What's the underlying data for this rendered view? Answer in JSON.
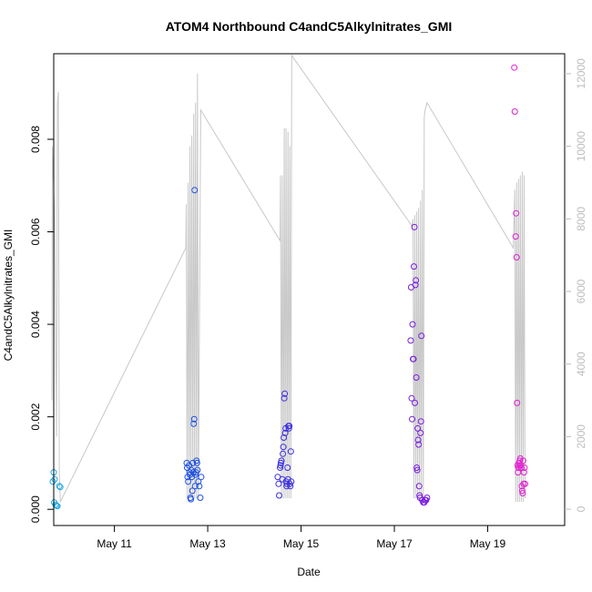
{
  "chart_data": {
    "type": "scatter",
    "title": "ATOM4 Northbound C4andC5Alkylnitrates_GMI",
    "xlabel": "Date",
    "ylabel": "C4andC5Alkylnitrates_GMI",
    "xlim": [
      9.7,
      20.65
    ],
    "ylim": [
      -0.00035,
      0.00985
    ],
    "y2lim": [
      -450,
      12550
    ],
    "x_ticks": [
      {
        "value": 11,
        "label": "May 11"
      },
      {
        "value": 13,
        "label": "May 13"
      },
      {
        "value": 15,
        "label": "May 15"
      },
      {
        "value": 17,
        "label": "May 17"
      },
      {
        "value": 19,
        "label": "May 19"
      }
    ],
    "y_ticks": [
      {
        "value": 0,
        "label": "0.000"
      },
      {
        "value": 0.002,
        "label": "0.002"
      },
      {
        "value": 0.004,
        "label": "0.004"
      },
      {
        "value": 0.006,
        "label": "0.006"
      },
      {
        "value": 0.008,
        "label": "0.008"
      }
    ],
    "y2_ticks": [
      {
        "value": 0,
        "label": "0"
      },
      {
        "value": 2000,
        "label": "2000"
      },
      {
        "value": 4000,
        "label": "4000"
      },
      {
        "value": 6000,
        "label": "6000"
      },
      {
        "value": 8000,
        "label": "8000"
      },
      {
        "value": 10000,
        "label": "10000"
      },
      {
        "value": 12000,
        "label": "12000"
      }
    ],
    "grid": false,
    "marker": "open-circle",
    "altitude_color": "#c8c8c8",
    "altitude_trace": [
      [
        9.66,
        3000
      ],
      [
        9.67,
        10000
      ],
      [
        9.72,
        8000
      ],
      [
        9.76,
        2000
      ],
      [
        9.78,
        11200
      ],
      [
        9.8,
        11500
      ],
      [
        9.82,
        1000
      ],
      [
        9.84,
        200
      ],
      [
        12.53,
        7200
      ],
      [
        12.54,
        8400
      ],
      [
        12.56,
        300
      ],
      [
        12.58,
        9000
      ],
      [
        12.6,
        300
      ],
      [
        12.62,
        10000
      ],
      [
        12.64,
        300
      ],
      [
        12.66,
        10300
      ],
      [
        12.68,
        300
      ],
      [
        12.7,
        10900
      ],
      [
        12.72,
        300
      ],
      [
        12.74,
        11200
      ],
      [
        12.76,
        300
      ],
      [
        12.78,
        12000
      ],
      [
        12.8,
        300
      ],
      [
        12.85,
        11000
      ],
      [
        14.55,
        7400
      ],
      [
        14.56,
        9200
      ],
      [
        14.58,
        300
      ],
      [
        14.6,
        9200
      ],
      [
        14.62,
        300
      ],
      [
        14.64,
        10500
      ],
      [
        14.66,
        300
      ],
      [
        14.68,
        10500
      ],
      [
        14.7,
        300
      ],
      [
        14.72,
        10400
      ],
      [
        14.74,
        300
      ],
      [
        14.76,
        10000
      ],
      [
        14.78,
        300
      ],
      [
        14.8,
        12500
      ],
      [
        17.38,
        7800
      ],
      [
        17.4,
        8000
      ],
      [
        17.42,
        300
      ],
      [
        17.44,
        8100
      ],
      [
        17.46,
        300
      ],
      [
        17.48,
        8200
      ],
      [
        17.5,
        300
      ],
      [
        17.52,
        8300
      ],
      [
        17.54,
        300
      ],
      [
        17.56,
        8500
      ],
      [
        17.58,
        300
      ],
      [
        17.6,
        8800
      ],
      [
        17.62,
        300
      ],
      [
        17.64,
        10800
      ],
      [
        17.66,
        11000
      ],
      [
        17.7,
        11200
      ],
      [
        19.55,
        7200
      ],
      [
        19.58,
        8800
      ],
      [
        19.6,
        200
      ],
      [
        19.62,
        9000
      ],
      [
        19.64,
        200
      ],
      [
        19.66,
        9100
      ],
      [
        19.68,
        200
      ],
      [
        19.7,
        9200
      ],
      [
        19.72,
        200
      ],
      [
        19.74,
        9300
      ],
      [
        19.76,
        200
      ],
      [
        19.78,
        9200
      ],
      [
        19.8,
        300
      ]
    ],
    "series": [
      {
        "color": "#1fa8e6",
        "points": [
          [
            9.68,
            0.0006
          ],
          [
            9.7,
            0.0008
          ],
          [
            9.72,
            0.00065
          ],
          [
            9.71,
            0.00015
          ],
          [
            9.74,
            0.0001
          ],
          [
            9.76,
            8e-05
          ],
          [
            9.78,
            7e-05
          ],
          [
            9.82,
            0.0005
          ],
          [
            9.84,
            0.00048
          ]
        ]
      },
      {
        "color": "#1c4fe0",
        "points": [
          [
            12.55,
            0.001
          ],
          [
            12.56,
            0.0009
          ],
          [
            12.57,
            0.0007
          ],
          [
            12.58,
            0.0006
          ],
          [
            12.6,
            0.00095
          ],
          [
            12.61,
            0.0008
          ],
          [
            12.62,
            0.00075
          ],
          [
            12.63,
            0.00025
          ],
          [
            12.64,
            0.00022
          ],
          [
            12.65,
            0.00085
          ],
          [
            12.66,
            0.0007
          ],
          [
            12.67,
            0.0004
          ],
          [
            12.68,
            0.001
          ],
          [
            12.69,
            0.0008
          ],
          [
            12.7,
            0.00185
          ],
          [
            12.71,
            0.00195
          ],
          [
            12.72,
            0.0069
          ],
          [
            12.73,
            0.0005
          ],
          [
            12.74,
            0.00075
          ],
          [
            12.75,
            0.0008
          ],
          [
            12.76,
            0.00105
          ],
          [
            12.77,
            0.001
          ],
          [
            12.78,
            0.00085
          ],
          [
            12.8,
            0.0006
          ],
          [
            12.82,
            0.0005
          ],
          [
            12.84,
            0.00025
          ],
          [
            12.86,
            0.0007
          ]
        ]
      },
      {
        "color": "#3a2de0",
        "points": [
          [
            14.5,
            0.0007
          ],
          [
            14.52,
            0.00055
          ],
          [
            14.53,
            0.0003
          ],
          [
            14.55,
            0.0009
          ],
          [
            14.56,
            0.00095
          ],
          [
            14.57,
            0.001
          ],
          [
            14.58,
            0.00105
          ],
          [
            14.6,
            0.00065
          ],
          [
            14.61,
            0.0012
          ],
          [
            14.62,
            0.00135
          ],
          [
            14.63,
            0.00155
          ],
          [
            14.64,
            0.0024
          ],
          [
            14.65,
            0.0025
          ],
          [
            14.66,
            0.00165
          ],
          [
            14.67,
            0.00175
          ],
          [
            14.68,
            0.0006
          ],
          [
            14.69,
            0.0005
          ],
          [
            14.7,
            0.00055
          ],
          [
            14.71,
            0.0009
          ],
          [
            14.72,
            0.00065
          ],
          [
            14.73,
            0.0018
          ],
          [
            14.74,
            0.00175
          ],
          [
            14.75,
            0.0018
          ],
          [
            14.76,
            0.00055
          ],
          [
            14.77,
            0.0005
          ],
          [
            14.78,
            0.00125
          ],
          [
            14.79,
            0.0006
          ]
        ]
      },
      {
        "color": "#7a1ee0",
        "points": [
          [
            17.35,
            0.00365
          ],
          [
            17.36,
            0.0048
          ],
          [
            17.37,
            0.0024
          ],
          [
            17.38,
            0.00195
          ],
          [
            17.39,
            0.004
          ],
          [
            17.4,
            0.00325
          ],
          [
            17.41,
            0.00325
          ],
          [
            17.42,
            0.00525
          ],
          [
            17.43,
            0.0061
          ],
          [
            17.44,
            0.0023
          ],
          [
            17.45,
            0.00485
          ],
          [
            17.46,
            0.00495
          ],
          [
            17.47,
            0.00285
          ],
          [
            17.48,
            0.0009
          ],
          [
            17.49,
            0.00085
          ],
          [
            17.5,
            0.00175
          ],
          [
            17.51,
            0.0015
          ],
          [
            17.52,
            0.0014
          ],
          [
            17.53,
            0.0005
          ],
          [
            17.54,
            0.0003
          ],
          [
            17.55,
            0.00025
          ],
          [
            17.56,
            0.00165
          ],
          [
            17.57,
            0.0019
          ],
          [
            17.58,
            0.00375
          ],
          [
            17.6,
            0.0002
          ],
          [
            17.62,
            0.00015
          ],
          [
            17.64,
            0.00015
          ],
          [
            17.66,
            0.0002
          ],
          [
            17.68,
            0.0002
          ],
          [
            17.7,
            0.00025
          ]
        ]
      },
      {
        "color": "#e020d0",
        "points": [
          [
            19.57,
            0.00955
          ],
          [
            19.58,
            0.0086
          ],
          [
            19.6,
            0.0059
          ],
          [
            19.61,
            0.0064
          ],
          [
            19.62,
            0.00545
          ],
          [
            19.63,
            0.0023
          ],
          [
            19.64,
            0.00095
          ],
          [
            19.65,
            0.0008
          ],
          [
            19.66,
            0.0009
          ],
          [
            19.67,
            0.001
          ],
          [
            19.68,
            0.00095
          ],
          [
            19.69,
            0.00105
          ],
          [
            19.7,
            0.0011
          ],
          [
            19.71,
            0.00095
          ],
          [
            19.72,
            0.0009
          ],
          [
            19.73,
            0.0005
          ],
          [
            19.74,
            0.0004
          ],
          [
            19.75,
            0.00035
          ],
          [
            19.76,
            0.00105
          ],
          [
            19.77,
            0.00055
          ],
          [
            19.78,
            0.0008
          ],
          [
            19.79,
            0.0009
          ],
          [
            19.8,
            0.00055
          ]
        ]
      }
    ]
  }
}
